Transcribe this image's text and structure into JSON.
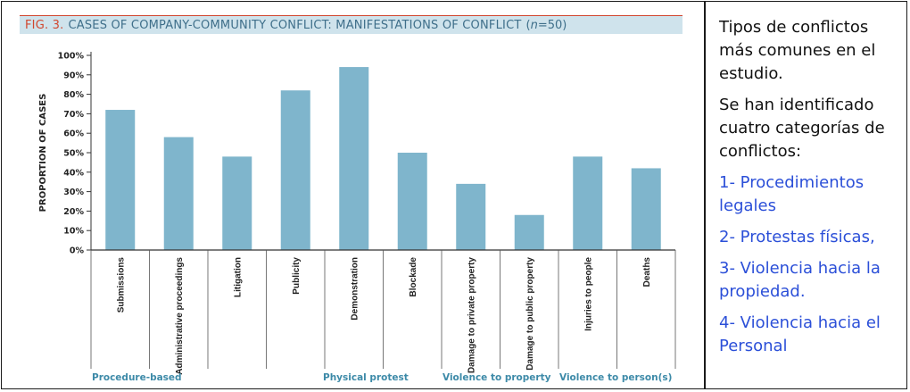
{
  "figure": {
    "number": "FIG. 3.",
    "title": "CASES OF COMPANY-COMMUNITY CONFLICT: MANIFESTATIONS OF CONFLICT",
    "n_label_var": "n",
    "n_label_rest": "=50)",
    "n_label_open": "("
  },
  "chart_data": {
    "type": "bar",
    "ylabel": "PROPORTION OF CASES",
    "xlabel": "",
    "ylim": [
      0,
      100
    ],
    "yticks": [
      "0%",
      "10%",
      "20%",
      "30%",
      "40%",
      "50%",
      "60%",
      "70%",
      "80%",
      "90%",
      "100%"
    ],
    "categories": [
      "Submissions",
      "Administrative proceedings",
      "Litigation",
      "Publicity",
      "Demonstration",
      "Blockade",
      "Damage to private property",
      "Damage to public property",
      "Injuries to people",
      "Deaths"
    ],
    "values": [
      72,
      58,
      48,
      82,
      94,
      50,
      34,
      18,
      48,
      42
    ],
    "groups": [
      {
        "label": "Procedure-based",
        "categories": [
          "Submissions",
          "Administrative proceedings",
          "Litigation",
          "Publicity"
        ]
      },
      {
        "label": "Physical protest",
        "categories": [
          "Demonstration",
          "Blockade"
        ]
      },
      {
        "label": "Violence to property",
        "categories": [
          "Damage to private property",
          "Damage to public property"
        ]
      },
      {
        "label": "Violence to person(s)",
        "categories": [
          "Injuries to people",
          "Deaths"
        ]
      }
    ],
    "bar_color": "#7fb5cc",
    "group_label_color": "#3d8aa8"
  },
  "side_text": {
    "intro": "Tipos de conflictos más comunes en el estudio.",
    "lead": "Se han identificado cuatro categorías de conflictos:",
    "items": [
      "1- Procedimientos legales",
      "2- Protestas físicas,",
      "3- Violencia hacia la propiedad.",
      "4- Violencia hacia el Personal"
    ]
  }
}
